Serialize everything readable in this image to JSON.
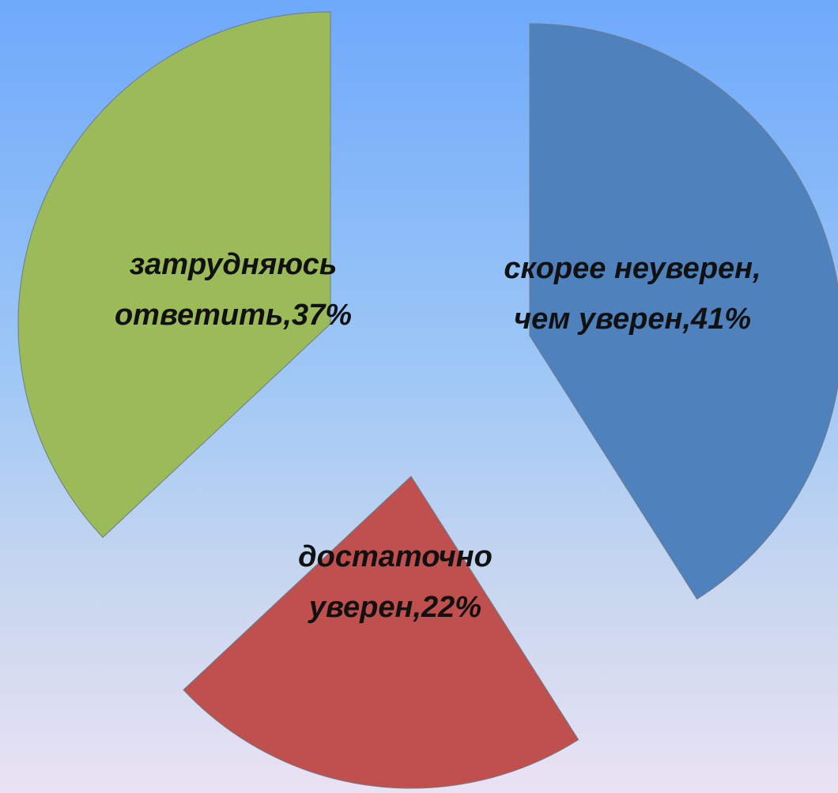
{
  "chart_data": {
    "type": "pie",
    "categories": [
      "скорее неуверен, чем уверен,",
      "достаточно уверен,",
      "затрудняюсь ответить,"
    ],
    "values": [
      41,
      22,
      37
    ],
    "value_labels": [
      "41%",
      "22%",
      "37%"
    ],
    "colors": [
      "#4f81bd",
      "#c0504d",
      "#9bbb59"
    ]
  }
}
